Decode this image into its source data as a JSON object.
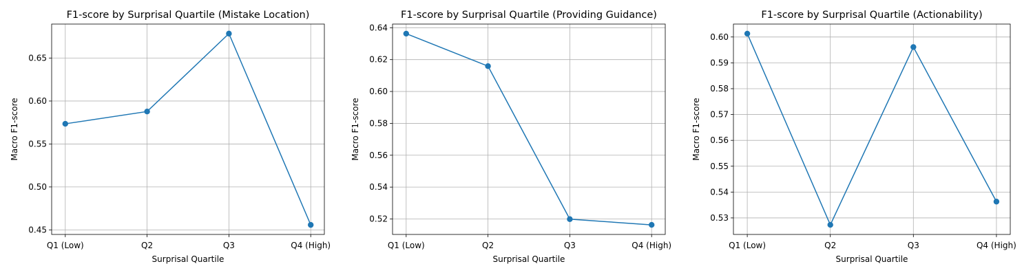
{
  "chart_data": [
    {
      "type": "line",
      "title": "F1-score by Surprisal Quartile (Mistake Location)",
      "xlabel": "Surprisal Quartile",
      "ylabel": "Macro F1-score",
      "categories": [
        "Q1 (Low)",
        "Q2",
        "Q3",
        "Q4 (High)"
      ],
      "values": [
        0.5735,
        0.5878,
        0.6785,
        0.4558
      ],
      "ylim": [
        0.4447,
        0.6896
      ],
      "yticks": [
        0.45,
        0.5,
        0.55,
        0.6,
        0.65
      ],
      "yticklabels": [
        "0.45",
        "0.50",
        "0.55",
        "0.60",
        "0.65"
      ],
      "grid": true,
      "color": "#1f77b4"
    },
    {
      "type": "line",
      "title": "F1-score by Surprisal Quartile (Providing Guidance)",
      "xlabel": "Surprisal Quartile",
      "ylabel": "Macro F1-score",
      "categories": [
        "Q1 (Low)",
        "Q2",
        "Q3",
        "Q4 (High)"
      ],
      "values": [
        0.6363,
        0.6159,
        0.5199,
        0.5163
      ],
      "ylim": [
        0.5103,
        0.6423
      ],
      "yticks": [
        0.52,
        0.54,
        0.56,
        0.58,
        0.6,
        0.62,
        0.64
      ],
      "yticklabels": [
        "0.52",
        "0.54",
        "0.56",
        "0.58",
        "0.60",
        "0.62",
        "0.64"
      ],
      "grid": true,
      "color": "#1f77b4"
    },
    {
      "type": "line",
      "title": "F1-score by Surprisal Quartile (Actionability)",
      "xlabel": "Surprisal Quartile",
      "ylabel": "Macro F1-score",
      "categories": [
        "Q1 (Low)",
        "Q2",
        "Q3",
        "Q4 (High)"
      ],
      "values": [
        0.6013,
        0.5273,
        0.5961,
        0.5363
      ],
      "ylim": [
        0.5236,
        0.605
      ],
      "yticks": [
        0.53,
        0.54,
        0.55,
        0.56,
        0.57,
        0.58,
        0.59,
        0.6
      ],
      "yticklabels": [
        "0.53",
        "0.54",
        "0.55",
        "0.56",
        "0.57",
        "0.58",
        "0.59",
        "0.60"
      ],
      "grid": true,
      "color": "#1f77b4"
    }
  ]
}
